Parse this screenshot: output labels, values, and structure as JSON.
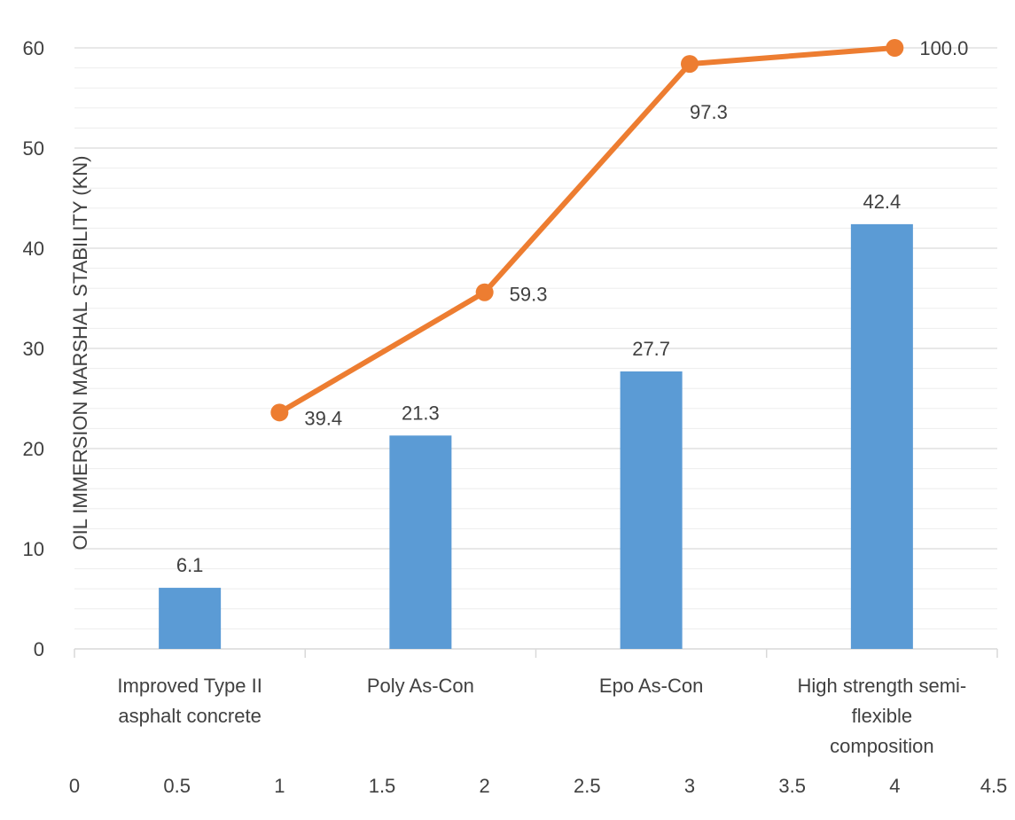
{
  "chart_data": {
    "type": "bar",
    "ylabel": "OIL IMMERSION MARSHAL STABILITY (KN)",
    "ylim": [
      0,
      60
    ],
    "yticks": [
      "0",
      "10",
      "20",
      "30",
      "40",
      "50",
      "60"
    ],
    "x2lim": [
      0,
      4.5
    ],
    "x2ticks": [
      "0",
      "0.5",
      "1",
      "1.5",
      "2",
      "2.5",
      "3",
      "3.5",
      "4",
      "4.5"
    ],
    "categories": [
      [
        "Improved Type II",
        "asphalt concrete"
      ],
      [
        "Poly As-Con"
      ],
      [
        "Epo As-Con"
      ],
      [
        "High strength semi-",
        "flexible",
        "composition"
      ]
    ],
    "bar_color": "#5B9BD5",
    "line_color": "#ED7D31",
    "grid": true,
    "series": [
      {
        "type": "bar",
        "values": [
          6.1,
          21.3,
          27.7,
          42.4
        ],
        "labels": [
          "6.1",
          "21.3",
          "27.7",
          "42.4"
        ]
      },
      {
        "type": "line",
        "x": [
          1,
          2,
          3,
          4
        ],
        "y": [
          23.6,
          35.6,
          58.4,
          60.0
        ],
        "labels": [
          "39.4",
          "59.3",
          "97.3",
          "100.0"
        ]
      }
    ]
  }
}
